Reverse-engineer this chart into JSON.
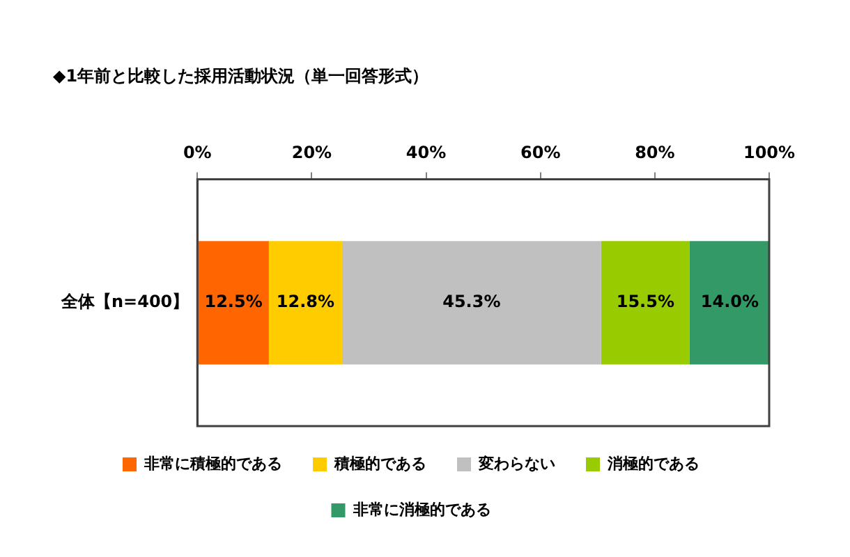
{
  "chart_data": {
    "type": "bar",
    "orientation": "horizontal",
    "stacked": true,
    "title": "◆1年前と比較した採用活動状況（単一回答形式）",
    "categories": [
      "全体【n=400】"
    ],
    "series": [
      {
        "name": "非常に積極的である",
        "color": "#ff6600",
        "values": [
          12.5
        ],
        "value_labels": [
          "12.5%"
        ]
      },
      {
        "name": "積極的である",
        "color": "#ffcc00",
        "values": [
          12.8
        ],
        "value_labels": [
          "12.8%"
        ]
      },
      {
        "name": "変わらない",
        "color": "#c0c0c0",
        "values": [
          45.3
        ],
        "value_labels": [
          "45.3%"
        ]
      },
      {
        "name": "消極的である",
        "color": "#99cc00",
        "values": [
          15.5
        ],
        "value_labels": [
          "15.5%"
        ]
      },
      {
        "name": "非常に消極的である",
        "color": "#339966",
        "values": [
          14.0
        ],
        "value_labels": [
          "14.0%"
        ]
      }
    ],
    "xlim": [
      0,
      100
    ],
    "xticks": [
      {
        "value": 0,
        "label": "0%"
      },
      {
        "value": 20,
        "label": "20%"
      },
      {
        "value": 40,
        "label": "40%"
      },
      {
        "value": 60,
        "label": "60%"
      },
      {
        "value": 80,
        "label": "80%"
      },
      {
        "value": 100,
        "label": "100%"
      }
    ],
    "grid": false,
    "legend": "bottom"
  }
}
